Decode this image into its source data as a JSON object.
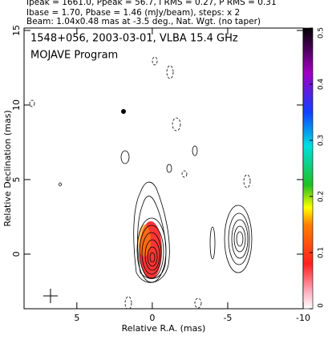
{
  "header": {
    "lines": [
      "Ipeak = 1661.0, Ppeak = 56.7, I RMS = 0.27, P RMS = 0.31",
      "Ibase = 1.70, Pbase = 1.46 (mJy/beam), steps: x 2",
      "Beam: 1.04x0.48 mas at -3.5 deg., Nat. Wgt. (no taper)"
    ]
  },
  "chart_data": {
    "type": "contour",
    "title": "1548+056, 2003-03-01, VLBA 15.4 GHz",
    "subtitle": "MOJAVE Program",
    "x_label": "Relative R.A. (mas)",
    "y_label": "Relative Declination (mas)",
    "xlim": [
      8.5,
      -10
    ],
    "xticks": [
      5,
      0,
      -5,
      -10
    ],
    "ylim": [
      -3.66,
      15.16
    ],
    "yticks": [
      0,
      5,
      10,
      15
    ],
    "colorbar": {
      "lim": [
        0,
        0.5
      ],
      "ticks": [
        0,
        0.1,
        0.2,
        0.3,
        0.4,
        0.5
      ]
    }
  }
}
